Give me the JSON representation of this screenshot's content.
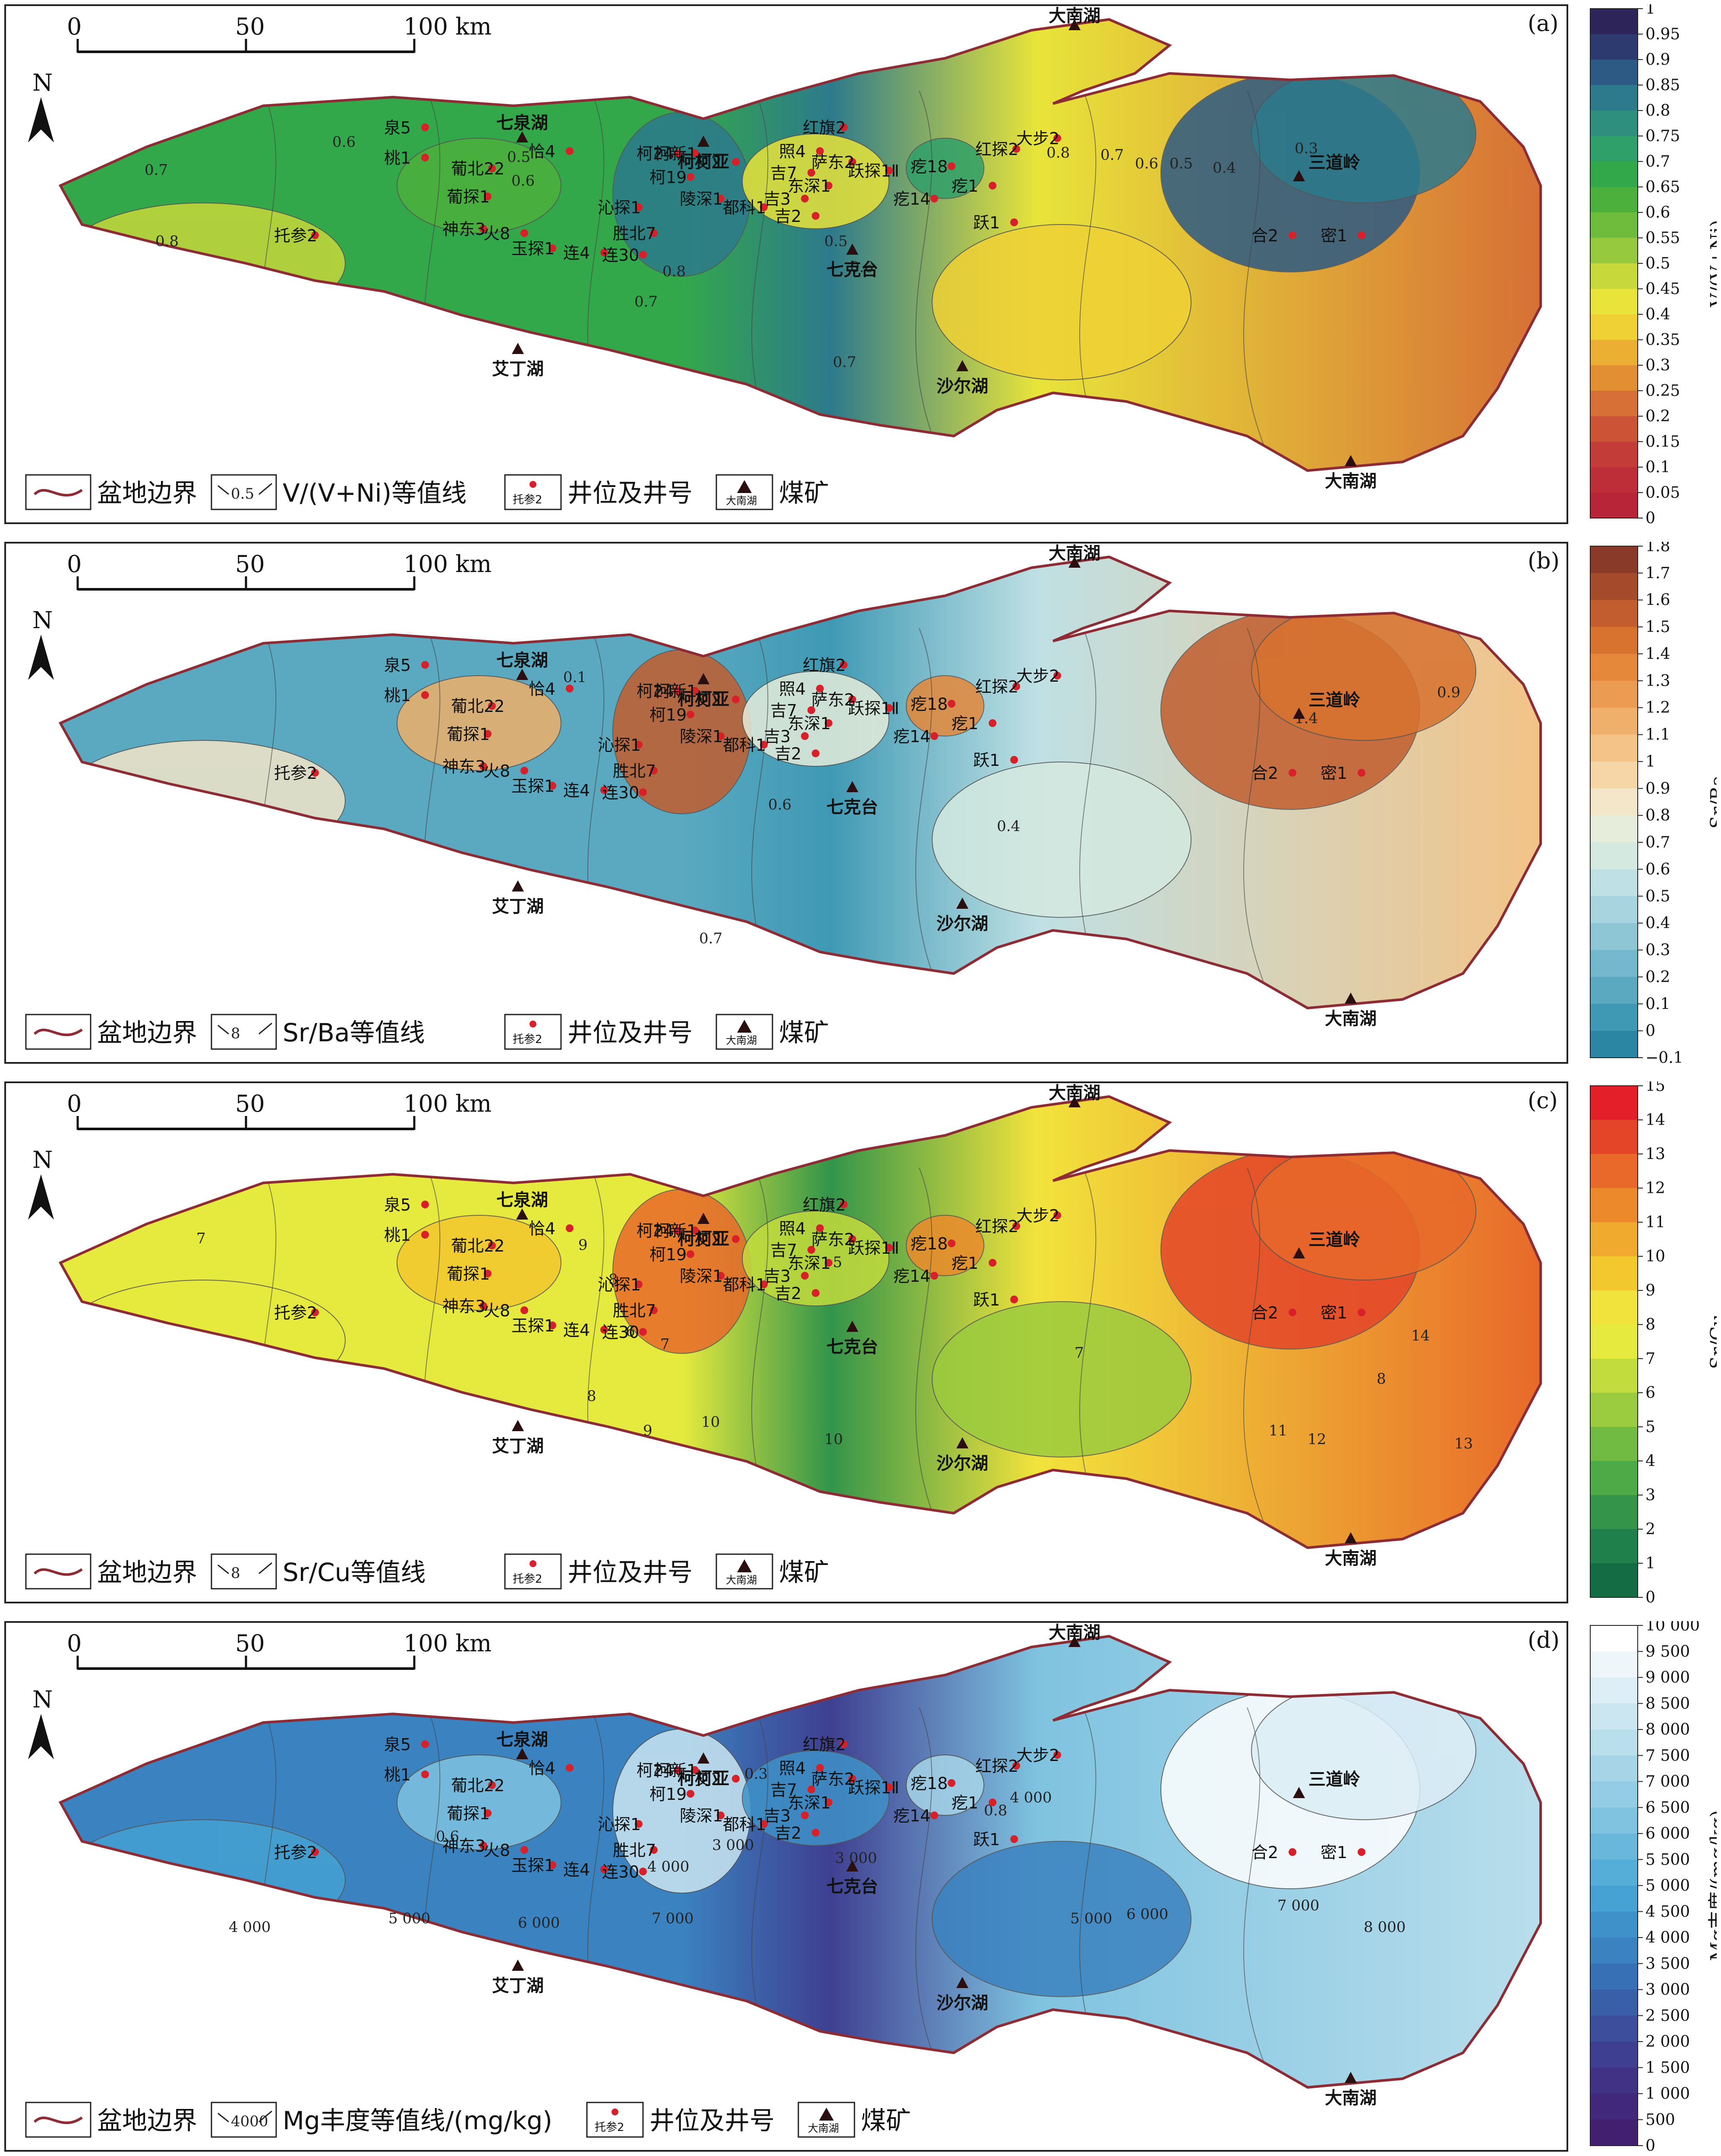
{
  "scale_bar": {
    "ticks": [
      "0",
      "50",
      "100 km"
    ]
  },
  "north_label": "N",
  "legend": {
    "boundary": "盆地边界",
    "well_symbol_label": "托参2",
    "well": "井位及井号",
    "mine_symbol_label": "大南湖",
    "mine": "煤矿"
  },
  "mines": [
    {
      "name": "大南湖",
      "pos": "top"
    },
    {
      "name": "七泉湖"
    },
    {
      "name": "柯柯亚"
    },
    {
      "name": "七克台"
    },
    {
      "name": "艾丁湖"
    },
    {
      "name": "沙尔湖"
    },
    {
      "name": "三道岭"
    },
    {
      "name": "大南湖",
      "pos": "bottom"
    }
  ],
  "wells": [
    "泉5",
    "桃1",
    "葡北22",
    "葡探1",
    "神东3",
    "火8",
    "托参2",
    "恰4",
    "沁探1",
    "玉探1",
    "连4",
    "胜北7",
    "连30",
    "柯24",
    "柯新1",
    "柯19",
    "艾2",
    "陵深1",
    "照4",
    "红旗2",
    "吉7",
    "吉3",
    "都科1",
    "吉2",
    "萨东2",
    "东深1",
    "跃探1Ⅱ",
    "疙18",
    "疙14",
    "疙1",
    "跃1",
    "红探2",
    "大步2",
    "合2",
    "密1"
  ],
  "panels": [
    {
      "tag": "(a)",
      "legend_contour_symbol": "0.5",
      "legend_contour": "V/(V+Ni)等值线",
      "colorbar_title": "V/(V+Ni)",
      "colorbar_ticks": [
        "1",
        "0.95",
        "0.9",
        "0.85",
        "0.8",
        "0.75",
        "0.7",
        "0.65",
        "0.6",
        "0.55",
        "0.5",
        "0.45",
        "0.4",
        "0.35",
        "0.3",
        "0.25",
        "0.2",
        "0.15",
        "0.1",
        "0.05",
        "0"
      ],
      "colorbar_colors": [
        "#2d2459",
        "#2c3a70",
        "#2c5a84",
        "#2d7a8c",
        "#2e8f7e",
        "#2fa06a",
        "#33a84b",
        "#4cb13c",
        "#6fbc3d",
        "#97c93f",
        "#c6d83a",
        "#e8e43a",
        "#efd135",
        "#ebb033",
        "#e28f34",
        "#d77036",
        "#cc5336",
        "#c33c37",
        "#bd2e38",
        "#b82539"
      ],
      "contour_labels": [
        "0.7",
        "0.6",
        "0.8",
        "0.5",
        "0.6",
        "0.7",
        "0.8",
        "0.5",
        "0.6",
        "0.8",
        "0.7",
        "0.6",
        "0.5",
        "0.4",
        "0.3",
        "0.7"
      ],
      "fills": {
        "west": "#33a84b",
        "center": "#2d7a8c",
        "east": "#d77036",
        "south": "#e8e43a"
      }
    },
    {
      "tag": "(b)",
      "legend_contour_symbol": "8",
      "legend_contour": "Sr/Ba等值线",
      "colorbar_title": "Sr/Ba",
      "colorbar_ticks": [
        "1.8",
        "1.7",
        "1.6",
        "1.5",
        "1.4",
        "1.3",
        "1.2",
        "1.1",
        "1",
        "0.9",
        "0.8",
        "0.7",
        "0.6",
        "0.5",
        "0.4",
        "0.3",
        "0.2",
        "0.1",
        "0",
        "−0.1"
      ],
      "colorbar_colors": [
        "#8a3a28",
        "#a54a2b",
        "#c15d2e",
        "#d8722f",
        "#e5883a",
        "#eb9c52",
        "#efb06b",
        "#f3c387",
        "#f6d6a6",
        "#f3e6c9",
        "#e6eddb",
        "#d4e9e0",
        "#bfe0e4",
        "#a7d4df",
        "#8ec6d6",
        "#75b8cd",
        "#5aa9c1",
        "#3f99b4",
        "#2a86a3"
      ],
      "contour_labels": [
        "0.1",
        "0.6",
        "0.4",
        "0.7",
        "1.4",
        "0.9"
      ],
      "fills": {
        "west": "#5aa9c1",
        "center": "#3f99b4",
        "east": "#f3c387",
        "south": "#bfe0e4"
      }
    },
    {
      "tag": "(c)",
      "legend_contour_symbol": "8",
      "legend_contour": "Sr/Cu等值线",
      "colorbar_title": "Sr/Cu",
      "colorbar_ticks": [
        "15",
        "14",
        "13",
        "12",
        "11",
        "10",
        "9",
        "8",
        "7",
        "6",
        "5",
        "4",
        "3",
        "2",
        "1",
        "0"
      ],
      "colorbar_colors": [
        "#e3202a",
        "#e44529",
        "#e8692a",
        "#ec8a2b",
        "#f0aa2d",
        "#f3c72e",
        "#f2e33c",
        "#e6ea3e",
        "#c3dc3d",
        "#9bcb3e",
        "#72bb42",
        "#4ea947",
        "#33944a",
        "#20804b",
        "#136c44"
      ],
      "contour_labels": [
        "7",
        "9",
        "8",
        "6",
        "5",
        "7",
        "8",
        "9",
        "10",
        "10",
        "11",
        "12",
        "13",
        "14",
        "8",
        "7"
      ],
      "fills": {
        "west": "#e6ea3e",
        "center": "#33944a",
        "east": "#e8692a",
        "south": "#f2e33c"
      }
    },
    {
      "tag": "(d)",
      "legend_contour_symbol": "4000",
      "legend_contour": "Mg丰度等值线/(mg/kg)",
      "colorbar_title": "Mg丰度/(mg/kg)",
      "colorbar_ticks": [
        "10 000",
        "9 500",
        "9 000",
        "8 500",
        "8 000",
        "7 500",
        "7 000",
        "6 500",
        "6 000",
        "5 500",
        "5 000",
        "4 500",
        "4 000",
        "3 500",
        "3 000",
        "2 500",
        "2 000",
        "1 500",
        "1 000",
        "500",
        "0"
      ],
      "colorbar_colors": [
        "#ffffff",
        "#eef6fa",
        "#ddeef6",
        "#cbe6f1",
        "#b9deec",
        "#a6d5e8",
        "#93cce4",
        "#7fc3e0",
        "#69b8db",
        "#55aed7",
        "#46a2d2",
        "#3f92c9",
        "#3b82c0",
        "#3870b5",
        "#3a5fa9",
        "#3d4e9d",
        "#3f3f91",
        "#413285",
        "#42287a",
        "#42206f"
      ],
      "contour_labels": [
        "0.6",
        "4 000",
        "5 000",
        "6 000",
        "7 000",
        "4 000",
        "3 000",
        "3 000",
        "5 000",
        "6 000",
        "7 000",
        "8 000",
        "0.8",
        "0.3",
        "4 000"
      ],
      "fills": {
        "west": "#3b82c0",
        "center": "#3f3f91",
        "east": "#b9deec",
        "south": "#7fc3e0"
      }
    }
  ]
}
